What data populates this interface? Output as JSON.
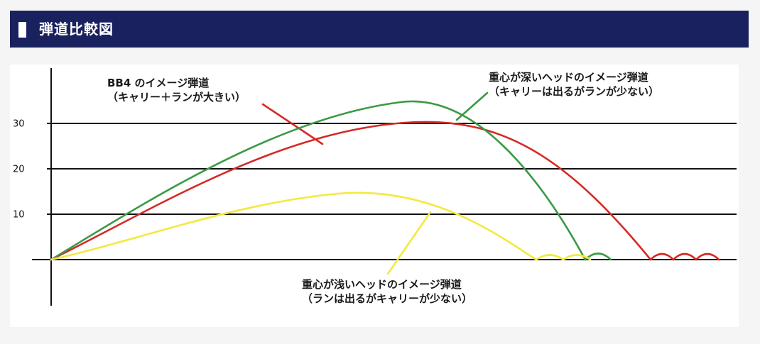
{
  "header": {
    "title": "弾道比較図"
  },
  "chart_data": {
    "type": "line",
    "title": "",
    "xlabel": "",
    "ylabel": "",
    "ylim": [
      -10,
      40
    ],
    "y_ticks": [
      10,
      20,
      30
    ],
    "x_axis": "unlabeled distance",
    "grid": "horizontal lines at y = 0, 10, 20, 30",
    "series": [
      {
        "key": "bb4",
        "color": "#d42a25",
        "peak_y": 28.7,
        "note_lines": [
          "BB4 のイメージ弾道",
          "（キャリー＋ランが大きい）"
        ]
      },
      {
        "key": "deep",
        "color": "#3b9a45",
        "peak_y": 32.5,
        "note_lines": [
          "重心が深いヘッドのイメージ弾道",
          "（キャリーは出るがランが少ない）"
        ]
      },
      {
        "key": "shallow",
        "color": "#f4e93c",
        "peak_y": 14.2,
        "note_lines": [
          "重心が浅いヘッドのイメージ弾道",
          "（ランは出るがキャリーが少ない）"
        ]
      }
    ]
  }
}
